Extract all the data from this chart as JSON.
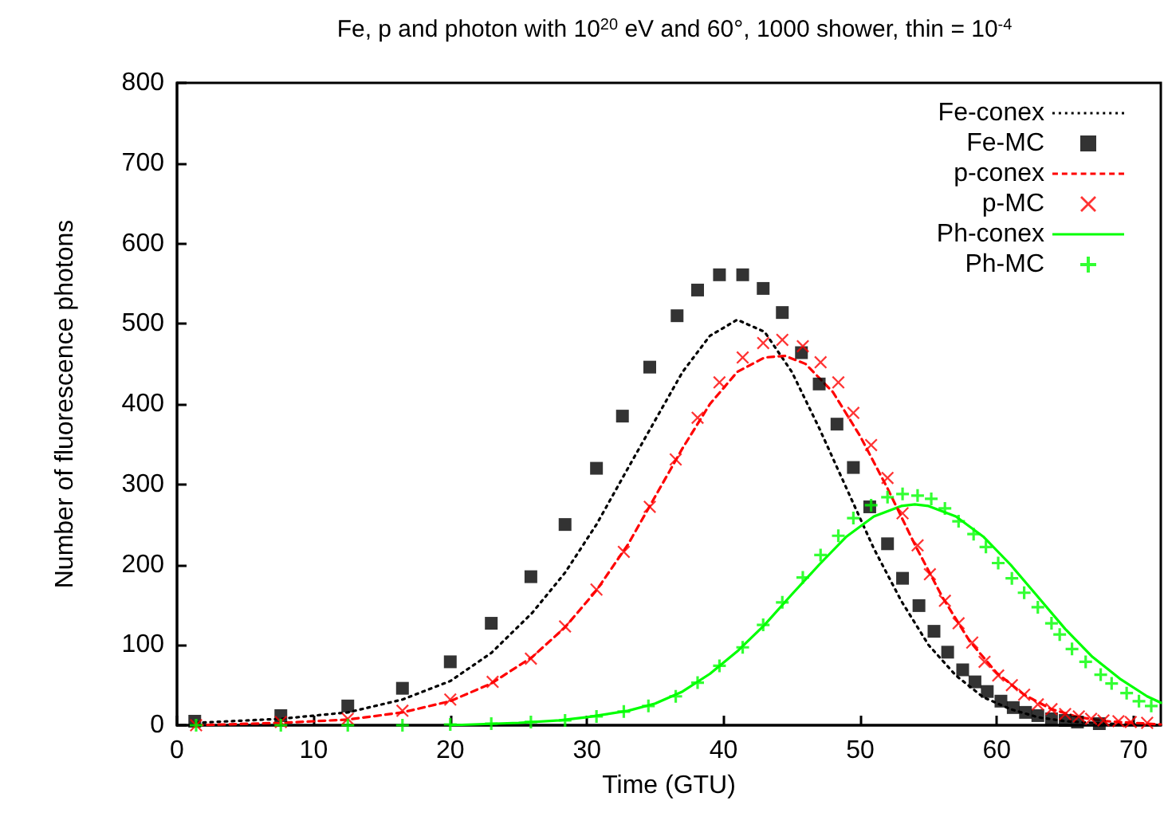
{
  "chart_data": {
    "type": "line",
    "title": "Fe, p and photon with 10$^{20}$ eV and 60°, 1000 shower, thin = 10$^{-4}$",
    "xlabel": "Time (GTU)",
    "ylabel": "Number of fluorescence photons",
    "xlim": [
      0,
      72
    ],
    "xticks": [
      0,
      10,
      20,
      30,
      40,
      50,
      60,
      70
    ],
    "ylim": [
      0,
      800
    ],
    "yticks": [
      0,
      100,
      200,
      300,
      400,
      500,
      600,
      700,
      800
    ],
    "grid": false,
    "legend": "top right",
    "series": [
      {
        "name": "Fe-conex",
        "type": "line",
        "color": "#000000",
        "line_style": "dotted",
        "marker": "none",
        "x": [
          1.4,
          7.6,
          12.5,
          16.5,
          20,
          23,
          26,
          28.4,
          30.7,
          33,
          35,
          37,
          39,
          41,
          43,
          45,
          47,
          49,
          51,
          53,
          55,
          57,
          59,
          61,
          63,
          65,
          68,
          72
        ],
        "values": [
          3,
          8,
          16,
          32,
          55,
          90,
          140,
          190,
          250,
          320,
          380,
          440,
          485,
          505,
          490,
          440,
          370,
          295,
          220,
          155,
          100,
          62,
          35,
          20,
          10,
          5,
          2,
          0
        ]
      },
      {
        "name": "Fe-MC",
        "type": "scatter",
        "color": "#000000",
        "marker": "square",
        "x": [
          1.3,
          7.6,
          12.5,
          16.5,
          20,
          23,
          25.9,
          28.4,
          30.7,
          32.6,
          34.6,
          36.6,
          38.1,
          39.7,
          41.4,
          42.9,
          44.3,
          45.7,
          47,
          48.3,
          49.5,
          50.7,
          52,
          53.1,
          54.3,
          55.4,
          56.4,
          57.5,
          58.4,
          59.3,
          60.3,
          61.2,
          62.1,
          63,
          64,
          65,
          65.9,
          67.5
        ],
        "values": [
          5,
          12,
          24,
          46,
          79,
          127,
          185,
          250,
          320,
          385,
          446,
          510,
          542,
          561,
          561,
          544,
          514,
          464,
          425,
          375,
          321,
          272,
          226,
          183,
          149,
          117,
          91,
          69,
          54,
          42,
          30,
          22,
          16,
          12,
          8,
          6,
          4,
          2
        ]
      },
      {
        "name": "p-conex",
        "type": "line",
        "color": "#ff0000",
        "line_style": "dashed",
        "marker": "none",
        "x": [
          1.4,
          7.6,
          12.5,
          16.5,
          20,
          23,
          26,
          28.4,
          30.7,
          33,
          35,
          37,
          39,
          41,
          43,
          44.5,
          46,
          48,
          50,
          52,
          54,
          56,
          58,
          60,
          62,
          64,
          66,
          68,
          72
        ],
        "values": [
          0,
          3,
          7,
          16,
          30,
          52,
          85,
          122,
          168,
          225,
          285,
          345,
          400,
          440,
          458,
          460,
          450,
          415,
          360,
          295,
          225,
          160,
          105,
          65,
          38,
          20,
          10,
          5,
          1
        ]
      },
      {
        "name": "p-MC",
        "type": "scatter",
        "color": "#ff0000",
        "marker": "cross",
        "x": [
          1.4,
          7.6,
          12.5,
          16.5,
          20,
          23.1,
          25.9,
          28.4,
          30.7,
          32.7,
          34.6,
          36.5,
          38.1,
          39.7,
          41.4,
          42.9,
          44.3,
          45.8,
          47.1,
          48.4,
          49.5,
          50.8,
          52,
          53.1,
          54.2,
          55.1,
          56.2,
          57.2,
          58.2,
          59.1,
          60.1,
          61.1,
          62,
          63,
          64,
          65,
          66,
          66.9,
          67.8,
          68.9,
          69.8,
          71
        ],
        "values": [
          0,
          4,
          8,
          18,
          32,
          54,
          83,
          123,
          169,
          216,
          272,
          331,
          383,
          427,
          458,
          476,
          480,
          472,
          452,
          427,
          389,
          349,
          308,
          264,
          224,
          188,
          155,
          127,
          103,
          79,
          62,
          50,
          38,
          26,
          20,
          14,
          11,
          8,
          6,
          5,
          4,
          3
        ]
      },
      {
        "name": "Ph-conex",
        "type": "line",
        "color": "#00ff00",
        "line_style": "solid",
        "marker": "none",
        "x": [
          20,
          25,
          28,
          30,
          33,
          35,
          37,
          39,
          41,
          43,
          45,
          47,
          49,
          51,
          53,
          54,
          55,
          57,
          59,
          61,
          63,
          65,
          67,
          69,
          71,
          72
        ],
        "values": [
          0,
          3,
          6,
          10,
          18,
          27,
          42,
          64,
          92,
          125,
          163,
          200,
          235,
          260,
          273,
          275,
          273,
          260,
          235,
          200,
          160,
          120,
          85,
          58,
          36,
          28
        ]
      },
      {
        "name": "Ph-MC",
        "type": "scatter",
        "color": "#00ff00",
        "marker": "plus",
        "x": [
          1.4,
          7.6,
          12.5,
          16.5,
          20,
          23,
          25.9,
          28.4,
          30.7,
          32.7,
          34.5,
          36.5,
          38.1,
          39.7,
          41.4,
          42.9,
          44.3,
          45.8,
          47.1,
          48.4,
          49.5,
          50.8,
          52,
          53.1,
          54.2,
          55.2,
          56.2,
          57.2,
          58.3,
          59.2,
          60.1,
          61.1,
          62,
          63,
          64,
          64.6,
          65.5,
          66.5,
          67.6,
          68.4,
          69.5,
          70.4,
          71.3
        ],
        "values": [
          0,
          0,
          0,
          0,
          1,
          2,
          4,
          6,
          11,
          17,
          24,
          36,
          53,
          74,
          97,
          125,
          153,
          184,
          212,
          236,
          258,
          274,
          284,
          288,
          286,
          282,
          270,
          254,
          238,
          222,
          202,
          183,
          165,
          147,
          127,
          113,
          95,
          79,
          63,
          52,
          40,
          30,
          24
        ]
      }
    ]
  }
}
